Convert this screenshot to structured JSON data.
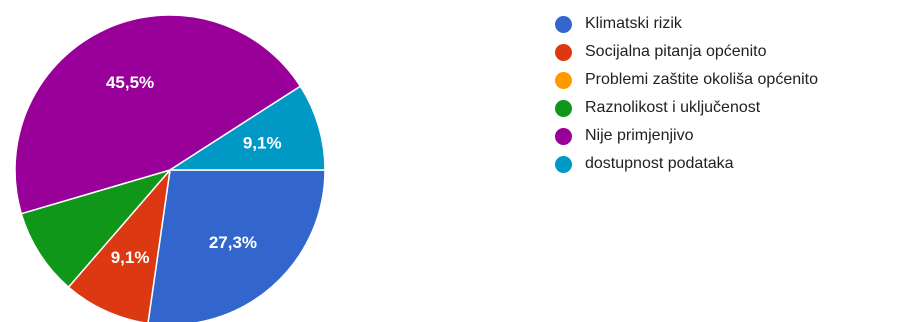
{
  "chart_data": {
    "type": "pie",
    "title": "",
    "legend_position": "right",
    "slices": [
      {
        "label": "Klimatski rizik",
        "value": 27.3,
        "value_label": "27,3%",
        "color": "#3366cc"
      },
      {
        "label": "Socijalna pitanja općenito",
        "value": 9.1,
        "value_label": "9,1%",
        "color": "#dc3912"
      },
      {
        "label": "Problemi zaštite okoliša općenito",
        "value": 0,
        "value_label": "",
        "color": "#ff9900"
      },
      {
        "label": "Raznolikost i uključenost",
        "value": 9.1,
        "value_label": "",
        "color": "#109618"
      },
      {
        "label": "Nije primjenjivo",
        "value": 45.5,
        "value_label": "45,5%",
        "color": "#990099"
      },
      {
        "label": "dostupnost podataka",
        "value": 9.1,
        "value_label": "9,1%",
        "color": "#0099c6"
      }
    ]
  }
}
